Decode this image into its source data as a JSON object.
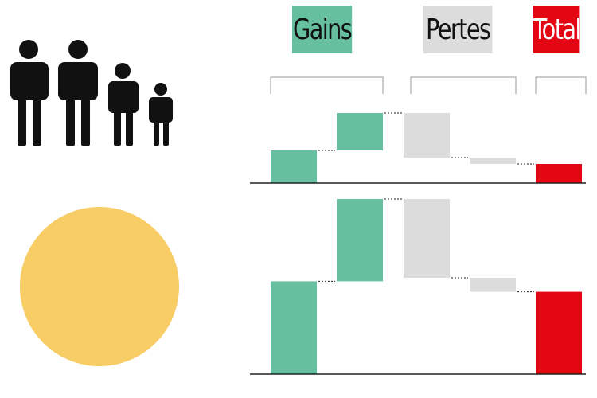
{
  "legend": {
    "gains": {
      "label": "Gains",
      "color": "#66bf9e"
    },
    "pertes": {
      "label": "Pertes",
      "color": "#dcdcdc"
    },
    "total": {
      "label": "Total",
      "color": "#e30613"
    }
  },
  "icons": {
    "people": "family-of-four-icon",
    "coin": "coin-circle-icon",
    "coin_color": "#f8cd66"
  },
  "chart_data": [
    {
      "type": "bar",
      "subtype": "waterfall",
      "categories": [
        "",
        "",
        "",
        "",
        ""
      ],
      "steps": [
        {
          "kind": "gain",
          "delta": 41
        },
        {
          "kind": "gain",
          "delta": 47
        },
        {
          "kind": "loss",
          "delta": -56
        },
        {
          "kind": "loss",
          "delta": -8
        },
        {
          "kind": "total",
          "value": 24
        }
      ],
      "ylim": [
        0,
        100
      ],
      "grid": false
    },
    {
      "type": "bar",
      "subtype": "waterfall",
      "categories": [
        "",
        "",
        "",
        "",
        ""
      ],
      "steps": [
        {
          "kind": "gain",
          "delta": 53
        },
        {
          "kind": "gain",
          "delta": 47
        },
        {
          "kind": "loss",
          "delta": -45
        },
        {
          "kind": "loss",
          "delta": -8
        },
        {
          "kind": "total",
          "value": 47
        }
      ],
      "ylim": [
        0,
        100
      ],
      "grid": false
    }
  ]
}
